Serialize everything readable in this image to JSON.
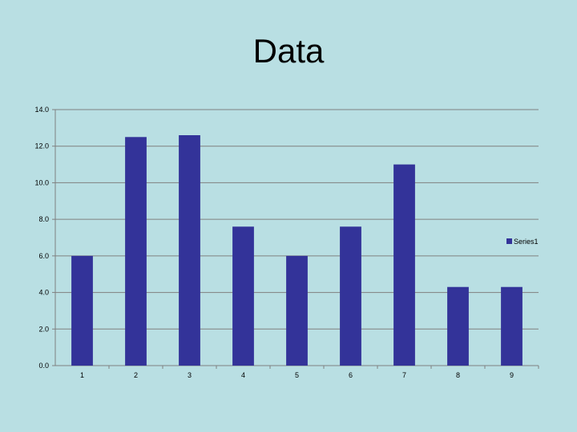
{
  "slide": {
    "title": "Data"
  },
  "chart_data": {
    "type": "bar",
    "title": "Data",
    "categories": [
      "1",
      "2",
      "3",
      "4",
      "5",
      "6",
      "7",
      "8",
      "9"
    ],
    "series": [
      {
        "name": "Series1",
        "color": "#333399",
        "values": [
          6.0,
          12.5,
          12.6,
          7.6,
          6.0,
          7.6,
          11.0,
          4.3,
          4.3
        ]
      }
    ],
    "ylim": [
      0,
      14
    ],
    "yticks": [
      "0.0",
      "2.0",
      "4.0",
      "6.0",
      "8.0",
      "10.0",
      "12.0",
      "14.0"
    ],
    "grid": true,
    "legend_position": "right"
  }
}
